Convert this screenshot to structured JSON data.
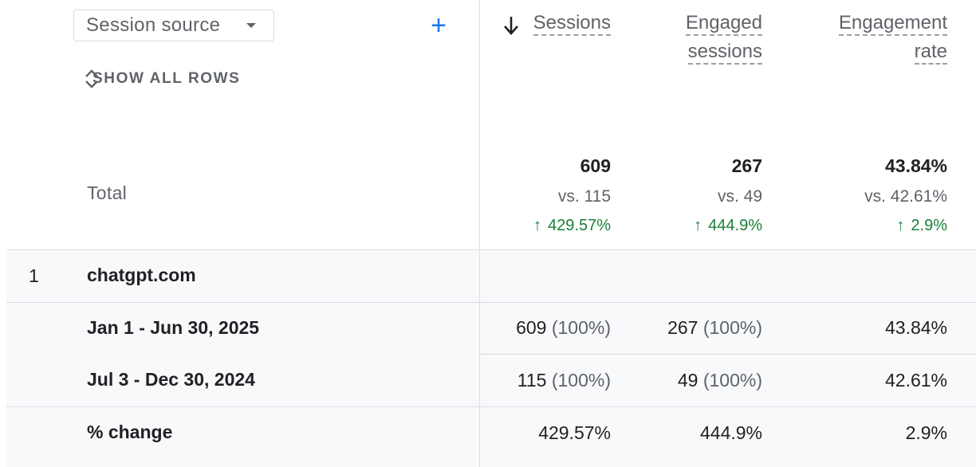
{
  "dimension": {
    "label": "Session source"
  },
  "show_all_rows_label": "SHOW ALL ROWS",
  "columns": {
    "sessions": "Sessions",
    "engaged_line1": "Engaged",
    "engaged_line2": "sessions",
    "rate_line1": "Engagement",
    "rate_line2": "rate"
  },
  "total": {
    "label": "Total",
    "sessions": "609",
    "sessions_vs": "vs. 115",
    "sessions_change": "429.57%",
    "engaged": "267",
    "engaged_vs": "vs. 49",
    "engaged_change": "444.9%",
    "rate": "43.84%",
    "rate_vs": "vs. 42.61%",
    "rate_change": "2.9%"
  },
  "row1": {
    "index": "1",
    "source": "chatgpt.com"
  },
  "period1": {
    "label": "Jan 1 - Jun 30, 2025",
    "sessions": "609",
    "sessions_pct": "(100%)",
    "engaged": "267",
    "engaged_pct": "(100%)",
    "rate": "43.84%"
  },
  "period2": {
    "label": "Jul 3 - Dec 30, 2024",
    "sessions": "115",
    "sessions_pct": "(100%)",
    "engaged": "49",
    "engaged_pct": "(100%)",
    "rate": "42.61%"
  },
  "change": {
    "label": "% change",
    "sessions": "429.57%",
    "engaged": "444.9%",
    "rate": "2.9%"
  },
  "colors": {
    "accent": "#1a73e8",
    "positive": "#188038"
  }
}
